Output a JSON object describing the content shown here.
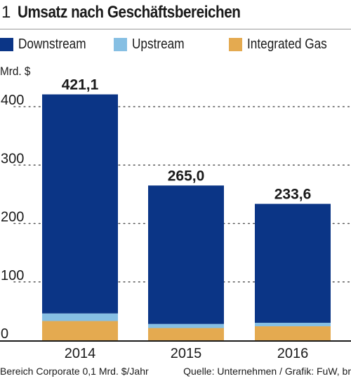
{
  "header": {
    "figure_number": "1",
    "title": "Umsatz nach Geschäftsbereichen"
  },
  "footer": {
    "note": "Bereich Corporate 0,1 Mrd. $/Jahr",
    "source": "Quelle: Unternehmen / Grafik: FuW, br"
  },
  "chart_data": {
    "type": "bar",
    "stacked": true,
    "ylabel": "Mrd. $",
    "ylim": [
      0,
      420
    ],
    "yticks": [
      0,
      100,
      200,
      300,
      400
    ],
    "grid": true,
    "legend_placement": "top",
    "categories": [
      "2014",
      "2015",
      "2016"
    ],
    "series": [
      {
        "name": "Integrated Gas",
        "color": "#e4aa50",
        "values": [
          33,
          21,
          24
        ]
      },
      {
        "name": "Upstream",
        "color": "#86bfe3",
        "values": [
          13,
          7,
          6
        ]
      },
      {
        "name": "Downstream",
        "color": "#0b3586",
        "values": [
          375,
          237,
          203.6
        ]
      }
    ],
    "legend_order": [
      "Downstream",
      "Upstream",
      "Integrated Gas"
    ],
    "totals": [
      "421,1",
      "265,0",
      "233,6"
    ],
    "total_values": [
      421.1,
      265.0,
      233.6
    ]
  }
}
